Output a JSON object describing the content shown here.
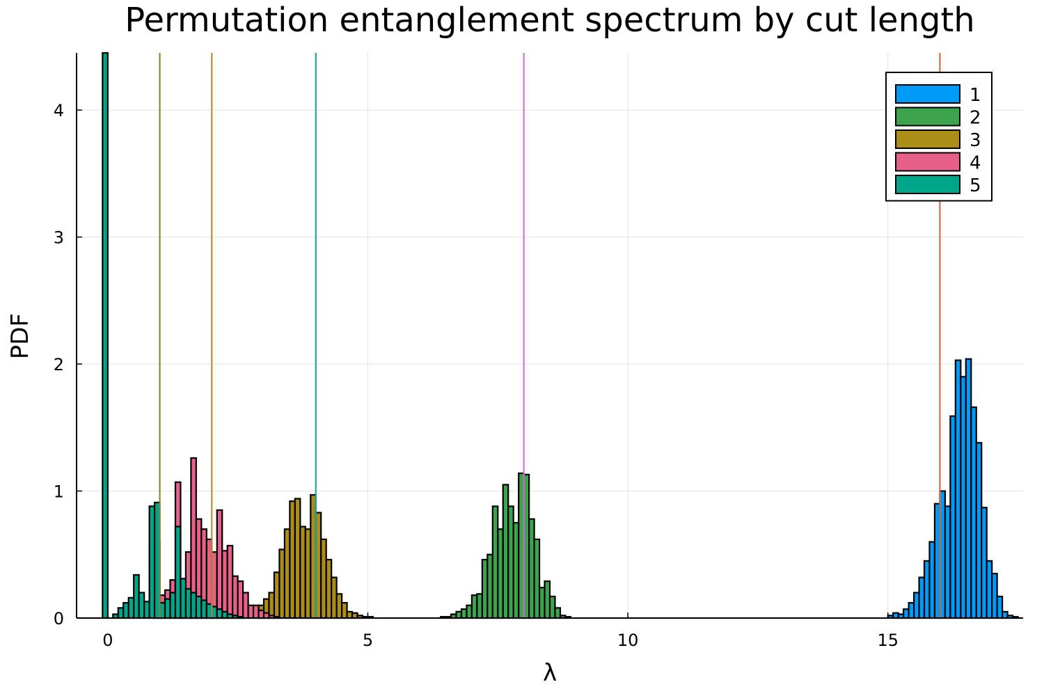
{
  "chart_data": {
    "type": "bar",
    "title": "Permutation entanglement spectrum by cut length",
    "xlabel": "λ",
    "ylabel": "PDF",
    "xlim": [
      -0.6,
      17.6
    ],
    "ylim": [
      0,
      4.45
    ],
    "xticks": [
      0,
      5,
      10,
      15
    ],
    "yticks": [
      0,
      1,
      2,
      3,
      4
    ],
    "grid": true,
    "legend_position": "top-right",
    "bin_width": 0.1,
    "series": [
      {
        "name": "1",
        "color": "#009af9",
        "bins": [
          [
            15.0,
            0.02
          ],
          [
            15.1,
            0.04
          ],
          [
            15.2,
            0.03
          ],
          [
            15.3,
            0.07
          ],
          [
            15.4,
            0.12
          ],
          [
            15.5,
            0.2
          ],
          [
            15.6,
            0.32
          ],
          [
            15.7,
            0.45
          ],
          [
            15.8,
            0.6
          ],
          [
            15.9,
            0.9
          ],
          [
            16.0,
            1.0
          ],
          [
            16.1,
            0.88
          ],
          [
            16.2,
            1.59
          ],
          [
            16.3,
            2.03
          ],
          [
            16.4,
            1.9
          ],
          [
            16.5,
            2.04
          ],
          [
            16.6,
            1.66
          ],
          [
            16.7,
            1.38
          ],
          [
            16.8,
            0.87
          ],
          [
            16.9,
            0.45
          ],
          [
            17.0,
            0.35
          ],
          [
            17.1,
            0.17
          ],
          [
            17.2,
            0.05
          ],
          [
            17.3,
            0.02
          ],
          [
            17.4,
            0.01
          ]
        ]
      },
      {
        "name": "2",
        "color": "#3da44d",
        "bins": [
          [
            6.4,
            0.01
          ],
          [
            6.5,
            0.01
          ],
          [
            6.6,
            0.03
          ],
          [
            6.7,
            0.05
          ],
          [
            6.8,
            0.07
          ],
          [
            6.9,
            0.1
          ],
          [
            7.0,
            0.18
          ],
          [
            7.1,
            0.19
          ],
          [
            7.2,
            0.46
          ],
          [
            7.3,
            0.5
          ],
          [
            7.4,
            0.88
          ],
          [
            7.5,
            0.7
          ],
          [
            7.6,
            1.05
          ],
          [
            7.7,
            0.88
          ],
          [
            7.8,
            0.75
          ],
          [
            7.9,
            1.14
          ],
          [
            8.0,
            1.13
          ],
          [
            8.1,
            0.78
          ],
          [
            8.2,
            0.62
          ],
          [
            8.3,
            0.24
          ],
          [
            8.4,
            0.29
          ],
          [
            8.5,
            0.17
          ],
          [
            8.6,
            0.08
          ],
          [
            8.7,
            0.02
          ],
          [
            8.8,
            0.01
          ]
        ]
      },
      {
        "name": "3",
        "color": "#ac8d18",
        "bins": [
          [
            2.9,
            0.1
          ],
          [
            3.0,
            0.15
          ],
          [
            3.1,
            0.2
          ],
          [
            3.2,
            0.36
          ],
          [
            3.3,
            0.54
          ],
          [
            3.4,
            0.7
          ],
          [
            3.5,
            0.92
          ],
          [
            3.6,
            0.94
          ],
          [
            3.7,
            0.72
          ],
          [
            3.8,
            0.7
          ],
          [
            3.9,
            0.97
          ],
          [
            4.0,
            0.83
          ],
          [
            4.1,
            0.62
          ],
          [
            4.2,
            0.46
          ],
          [
            4.3,
            0.32
          ],
          [
            4.4,
            0.19
          ],
          [
            4.5,
            0.12
          ],
          [
            4.6,
            0.05
          ],
          [
            4.7,
            0.04
          ],
          [
            4.8,
            0.02
          ],
          [
            4.9,
            0.01
          ],
          [
            5.0,
            0.01
          ]
        ]
      },
      {
        "name": "4",
        "color": "#e7608a",
        "bins": [
          [
            0.9,
            0.6
          ],
          [
            1.0,
            0.18
          ],
          [
            1.1,
            0.22
          ],
          [
            1.2,
            0.3
          ],
          [
            1.3,
            1.07
          ],
          [
            1.4,
            0.18
          ],
          [
            1.5,
            0.52
          ],
          [
            1.6,
            1.26
          ],
          [
            1.7,
            0.78
          ],
          [
            1.8,
            0.7
          ],
          [
            1.9,
            0.62
          ],
          [
            2.0,
            0.52
          ],
          [
            2.1,
            0.85
          ],
          [
            2.2,
            0.53
          ],
          [
            2.3,
            0.57
          ],
          [
            2.4,
            0.33
          ],
          [
            2.5,
            0.29
          ],
          [
            2.6,
            0.2
          ],
          [
            2.7,
            0.1
          ],
          [
            2.8,
            0.1
          ],
          [
            2.9,
            0.06
          ],
          [
            3.0,
            0.04
          ],
          [
            3.1,
            0.02
          ],
          [
            3.2,
            0.01
          ]
        ]
      },
      {
        "name": "5",
        "color": "#00a68a",
        "bins": [
          [
            -0.1,
            4.45
          ],
          [
            0.1,
            0.03
          ],
          [
            0.2,
            0.08
          ],
          [
            0.3,
            0.12
          ],
          [
            0.4,
            0.16
          ],
          [
            0.5,
            0.34
          ],
          [
            0.6,
            0.2
          ],
          [
            0.7,
            0.13
          ],
          [
            0.8,
            0.88
          ],
          [
            0.9,
            0.91
          ],
          [
            1.0,
            0.12
          ],
          [
            1.1,
            0.15
          ],
          [
            1.2,
            0.2
          ],
          [
            1.3,
            0.72
          ],
          [
            1.4,
            0.31
          ],
          [
            1.5,
            0.23
          ],
          [
            1.6,
            0.2
          ],
          [
            1.7,
            0.17
          ],
          [
            1.8,
            0.14
          ],
          [
            1.9,
            0.11
          ],
          [
            2.0,
            0.09
          ],
          [
            2.1,
            0.07
          ],
          [
            2.2,
            0.05
          ],
          [
            2.3,
            0.03
          ],
          [
            2.4,
            0.02
          ],
          [
            2.5,
            0.01
          ]
        ]
      }
    ],
    "vlines": [
      {
        "x": 1,
        "color": "#8a8a2e"
      },
      {
        "x": 2,
        "color": "#c08a3a"
      },
      {
        "x": 4,
        "color": "#17a8a8"
      },
      {
        "x": 8,
        "color": "#c977d9"
      },
      {
        "x": 16,
        "color": "#d2704a"
      }
    ]
  }
}
